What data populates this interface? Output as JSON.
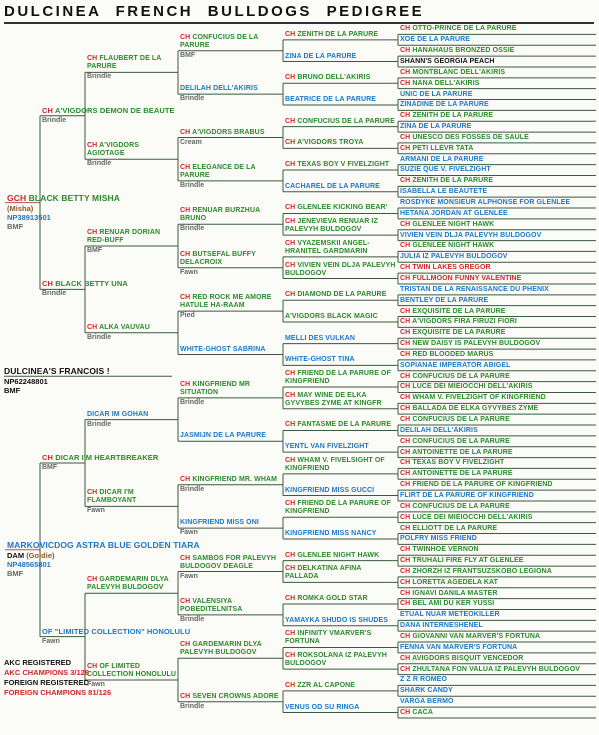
{
  "header": {
    "title": "DULCINEA FRENCH BULLDOGS PEDIGREE"
  },
  "subject": {
    "name": "DULCINEA'S FRANCOIS !",
    "reg": "NP62248801",
    "coat": "BMF"
  },
  "generations": [
    [
      {
        "title": "GCH",
        "name": "BLACK BETTY MISHA",
        "call_name": "(Misha)",
        "reg": "NP38913501",
        "coat": "BMF"
      },
      {
        "name": "MARKOVICDOG ASTRA BLUE GOLDEN TIARA",
        "role": "DAM",
        "call_name": "(Goldie)",
        "reg": "NP48565801",
        "coat": "BMF"
      }
    ],
    [
      {
        "title": "CH",
        "name": "A'VIGDORS DEMON DE BEAUTE",
        "coat": "Brindle"
      },
      {
        "title": "CH",
        "name": "BLACK BETTY UNA",
        "coat": "Brindle"
      },
      {
        "title": "CH",
        "name": "DICAR I'M HEARTBREAKER",
        "coat": "BMF"
      },
      {
        "name": "OF \"LIMITED COLLECTION\" HONOLULU",
        "coat": "Fawn"
      }
    ],
    [
      {
        "title": "CH",
        "name": "FLAUBERT DE LA PARURE",
        "coat": "Brindle"
      },
      {
        "title": "CH",
        "name": "A'VIGDORS AGIOTAGE",
        "coat": "Brindle"
      },
      {
        "title": "CH",
        "name": "RENUAR DORIAN RED-BUFF",
        "coat": "BMF"
      },
      {
        "title": "CH",
        "name": "ALKA VAUVAU",
        "coat": "Brindle"
      },
      {
        "name": "DICAR IM GOHAN",
        "coat": "Brindle"
      },
      {
        "title": "CH",
        "name": "DICAR I'M FLAMBOYANT",
        "coat": "Fawn"
      },
      {
        "title": "CH",
        "name": "GARDEMARIN DLYA PALEVYH BULDOGOV"
      },
      {
        "title": "CH",
        "name": "OF LIMITED COLLECTION HONOLULU",
        "coat": "Fawn"
      }
    ],
    [
      {
        "title": "CH",
        "name": "CONFUCIUS DE LA PARURE",
        "coat": "BMF"
      },
      {
        "name": "DELILAH DELL'AKIRIS",
        "coat": "Brindle"
      },
      {
        "title": "CH",
        "name": "A'VIGDORS BRABUS",
        "coat": "Cream"
      },
      {
        "title": "CH",
        "name": "ELEGANCE DE LA PARURE",
        "coat": "Brindle"
      },
      {
        "title": "CH",
        "name": "RENUAR BURZHUA BRUNO",
        "coat": "Brindle"
      },
      {
        "title": "CH",
        "name": "BUTSEFAL BUFFY DELACROIX",
        "coat": "Fawn"
      },
      {
        "title": "CH",
        "name": "RED ROCK ME AMORE HATULE HA-RAAM",
        "coat": "Pied"
      },
      {
        "name": "WHITE-GHOST SABRINA"
      },
      {
        "title": "CH",
        "name": "KINGFRIEND MR SITUATION",
        "coat": "Brindle"
      },
      {
        "name": "JASMIJN DE LA PARURE"
      },
      {
        "title": "CH",
        "name": "KINGFRIEND MR. WHAM",
        "coat": "Brindle"
      },
      {
        "name": "KINGFRIEND MISS ONI",
        "coat": "Fawn"
      },
      {
        "title": "CH",
        "name": "SAMBOS FOR PALEVYH BULDOGOV DEAGLE",
        "coat": "Fawn"
      },
      {
        "title": "CH",
        "name": "VALENSIYA POBEDITELNITSA",
        "coat": "Brindle"
      },
      {
        "title": "CH",
        "name": "GARDEMARIN DLYA PALEVYH BULDOGOV"
      },
      {
        "title": "CH",
        "name": "SEVEN CROWNS ADORE",
        "coat": "Brindle"
      }
    ],
    [
      {
        "title": "CH",
        "name": "ZENITH DE LA PARURE"
      },
      {
        "name": "ZINA DE LA PARURE"
      },
      {
        "title": "CH",
        "name": "BRUNO DELL'AKIRIS"
      },
      {
        "name": "BEATRICE DE LA PARURE"
      },
      {
        "title": "CH",
        "name": "CONFUCIUS DE LA PARURE"
      },
      {
        "title": "CH",
        "name": "A'VIGDORS TROYA"
      },
      {
        "title": "CH",
        "name": "TEXAS BOY V FIVELZIGHT"
      },
      {
        "name": "CACHAREL DE LA PARURE"
      },
      {
        "title": "CH",
        "name": "GLENLEE KICKING BEAR'"
      },
      {
        "title": "CH",
        "name": "JENEVIEVA RENUAR IZ PALEVYH BULDOGOV"
      },
      {
        "title": "CH",
        "name": "VYAZEMSKII ANGEL-HRANITEL GARDMARIN"
      },
      {
        "title": "CH",
        "name": "VIVIEN VEIN DLJA PALEVYH BULDOGOV"
      },
      {
        "title": "CH",
        "name": "DIAMOND DE LA PARURE"
      },
      {
        "name": "A'VIGDORS BLACK MAGIC",
        "color": "green"
      },
      {
        "name": "MELLI DES VULKAN"
      },
      {
        "name": "WHITE-GHOST TINA"
      },
      {
        "title": "CH",
        "name": "FRIEND DE LA PARURE OF KINGFRIEND"
      },
      {
        "title": "CH",
        "name": "MAY WINE DE ELKA GYVYBES ZYME AT KINGFR"
      },
      {
        "title": "CH",
        "name": "FANTASME DE LA PARURE"
      },
      {
        "name": "YENTL VAN FIVELZIGHT"
      },
      {
        "title": "CH",
        "name": "WHAM V. FIVELSIGHT OF KINGFRIEND"
      },
      {
        "name": "KINGFRIEND MISS GUCCI"
      },
      {
        "title": "CH",
        "name": "FRIEND DE LA PARURE OF KINGFRIEND"
      },
      {
        "name": "KINGFRIEND MISS NANCY"
      },
      {
        "title": "CH",
        "name": "GLENLEE NIGHT HAWK"
      },
      {
        "title": "CH",
        "name": "DELKATINA AFINA PALLADA"
      },
      {
        "title": "CH",
        "name": "ROMKA GOLD STAR"
      },
      {
        "name": "YAMAYKA SHUDO IS SHUDES"
      },
      {
        "title": "CH",
        "name": "INFINITY VMARVER'S FORTUNA"
      },
      {
        "title": "CH",
        "name": "ROKSOLANA IZ PALEVYH BULDOGOV"
      },
      {
        "title": "CH",
        "name": "ZZR AL CAPONE"
      },
      {
        "name": "VENUS OD SU RINGA"
      }
    ],
    [
      {
        "title": "CH",
        "name": "OTTO-PRINCE DE LA PARURE"
      },
      {
        "name": "XOE DE LA PARURE"
      },
      {
        "title": "CH",
        "name": "HANAHAUS BRONZED OSSIE"
      },
      {
        "name": "SHANN'S GEORGIA PEACH",
        "color": "black"
      },
      {
        "title": "CH",
        "name": "MONTBLANC DELL'AKIRIS"
      },
      {
        "title": "CH",
        "name": "NANA DELL'AKIRIS"
      },
      {
        "name": "UNIC DE LA PARURE"
      },
      {
        "name": "ZINADINE DE LA PARURE"
      },
      {
        "title": "CH",
        "name": "ZENITH DE LA PARURE"
      },
      {
        "name": "ZINA DE LA PARURE"
      },
      {
        "title": "CH",
        "name": "UNESCO DES FOSSES DE SAULE"
      },
      {
        "title": "CH",
        "name": "PETI LLEVR TATA"
      },
      {
        "name": "ARMANI DE LA PARURE"
      },
      {
        "name": "SUZIE QUE V. FIVELZIGHT"
      },
      {
        "title": "CH",
        "name": "ZENITH DE LA PARURE"
      },
      {
        "name": "ISABELLA LE BEAUTETE"
      },
      {
        "name": "ROSDYKE MONSIEUR ALPHONSE FOR GLENLEE"
      },
      {
        "name": "HETANA JORDAN AT GLENLEE"
      },
      {
        "title": "CH",
        "name": "GLENLEE NIGHT HAWK"
      },
      {
        "name": "VIVIEN VEIN DLJA PALEVYH BULDOGOV"
      },
      {
        "title": "CH",
        "name": "GLENLEE NIGHT HAWK"
      },
      {
        "name": "JULIA IZ PALEVYH BULDOGOV"
      },
      {
        "title": "CH",
        "name": "TWIN LAKES GREGOR",
        "color": "red"
      },
      {
        "title": "CH",
        "name": "FULLMOON FUNNY VALENTINE",
        "color": "red"
      },
      {
        "name": "TRISTAN DE LA RENAISSANCE DU PHENIX"
      },
      {
        "name": "BENTLEY DE LA PARURE"
      },
      {
        "title": "CH",
        "name": "EXQUISITE DE LA PARURE"
      },
      {
        "title": "CH",
        "name": "A'VIGDORS FIRA FIRUZI FIORI"
      },
      {
        "title": "CH",
        "name": "EXQUISITE DE LA PARURE"
      },
      {
        "title": "CH",
        "name": "NEW DAISY IS PALEVYH BULDOGOV"
      },
      {
        "title": "CH",
        "name": "RED BLOODED MARUS"
      },
      {
        "name": "SOPIANAE IMPERATOR ABIGEL"
      },
      {
        "title": "CH",
        "name": "CONFUCIUS DE LA PARURE"
      },
      {
        "title": "CH",
        "name": "LUCE DEI MIEIOCCHI DELL'AKIRIS"
      },
      {
        "title": "CH",
        "name": "WHAM V. FIVELZIGHT OF KINGFRIEND"
      },
      {
        "title": "CH",
        "name": "BALLADA DE ELKA GYVYBES ZYME"
      },
      {
        "title": "CH",
        "name": "CONFUCIUS DE LA PARURE"
      },
      {
        "name": "DELILAH DELL'AKIRIS"
      },
      {
        "title": "CH",
        "name": "CONFUCIUS DE LA PARURE"
      },
      {
        "title": "CH",
        "name": "ANTOINETTE DE LA PARURE"
      },
      {
        "title": "CH",
        "name": "TEXAS BOY V FIVELZIGHT"
      },
      {
        "title": "CH",
        "name": "ANTOINETTE DE LA PARURE"
      },
      {
        "title": "CH",
        "name": "FRIEND DE LA PARURE OF KINGFRIEND"
      },
      {
        "name": "FLIRT DE LA PARURE OF KINGFRIEND"
      },
      {
        "title": "CH",
        "name": "CONFUCIUS DE LA PARURE"
      },
      {
        "title": "CH",
        "name": "LUCE DEI MIEIOCCHI DELL'AKIRIS"
      },
      {
        "title": "CH",
        "name": "ELLIOTT DE LA PARURE"
      },
      {
        "name": "POLFRY MISS FRIEND"
      },
      {
        "title": "CH",
        "name": "TWINHOE VERNON"
      },
      {
        "title": "CH",
        "name": "TRUHALI FIRE FLY AT GLENLEE"
      },
      {
        "title": "CH",
        "name": "ZHORZH IZ FRANTSUZSKOBO LEGIONA"
      },
      {
        "title": "CH",
        "name": "LORETTA AGEDELA KAT"
      },
      {
        "title": "CH",
        "name": "IGNAVI DANILA MASTER"
      },
      {
        "title": "CH",
        "name": "BEL AMI DU KER YUSSI"
      },
      {
        "name": "ETUAL NUAR METEOKILLER"
      },
      {
        "name": "DANA INTERNESHENEL"
      },
      {
        "title": "CH",
        "name": "GIOVANNI VAN MARVER'S FORTUNA"
      },
      {
        "name": "FENNA VAN MARVER'S FORTUNA"
      },
      {
        "title": "CH",
        "name": "AVIGDORS BISQUIT VENCEDOR"
      },
      {
        "title": "CH",
        "name": "ZHULTANA FON VALUA IZ PALEVYH BULDOGOV"
      },
      {
        "name": "Z Z R ROMEO"
      },
      {
        "name": "SHARK CANDY"
      },
      {
        "name": "VARGA BERMO"
      },
      {
        "title": "CH",
        "name": "CACA"
      }
    ]
  ],
  "footer": [
    "AKC REGISTERED",
    "AKC CHAMPIONS 3/126",
    "FOREIGN REGISTERED",
    "FOREIGN CHAMPIONS 81/126"
  ]
}
